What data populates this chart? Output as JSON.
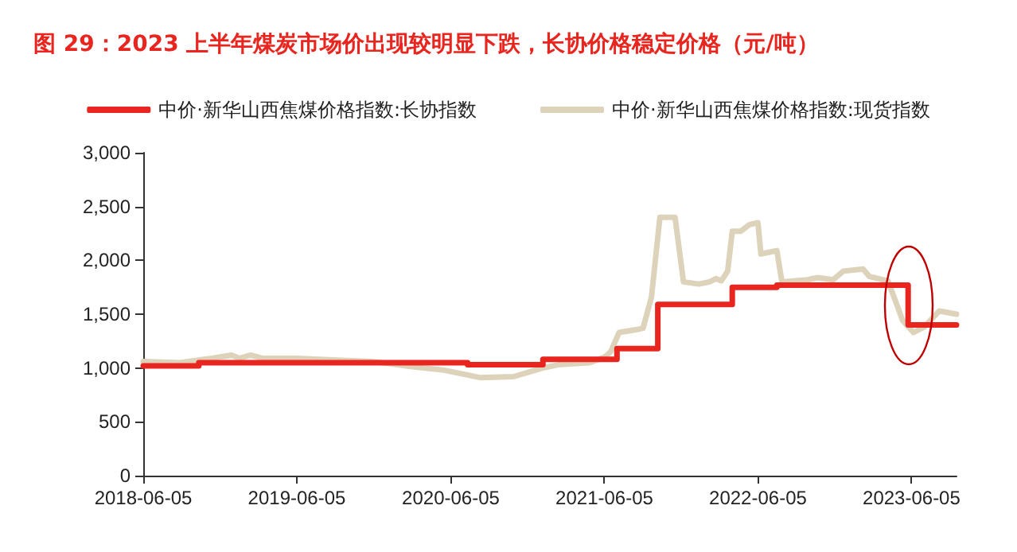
{
  "chart_data": {
    "type": "line",
    "title": "图 29：2023 上半年煤炭市场价出现较明显下跌，长协价格稳定价格（元/吨）",
    "legend": "top",
    "grid": false,
    "marker": "none",
    "line_style": "solid",
    "xlim": [
      "2018-06-05",
      "2023-09-20"
    ],
    "xticks": [
      "2018-06-05",
      "2019-06-05",
      "2020-06-05",
      "2021-06-05",
      "2022-06-05",
      "2023-06-05"
    ],
    "ylim": [
      0,
      3000
    ],
    "yticks": [
      {
        "value": 0,
        "label": "0"
      },
      {
        "value": 500,
        "label": "500"
      },
      {
        "value": 1000,
        "label": "1,000"
      },
      {
        "value": 1500,
        "label": "1,500"
      },
      {
        "value": 2000,
        "label": "2,000"
      },
      {
        "value": 2500,
        "label": "2,500"
      },
      {
        "value": 3000,
        "label": "3,000"
      }
    ],
    "series": [
      {
        "name": "中价·新华山西焦煤价格指数:长协指数",
        "type": "step",
        "color": "#e8261f",
        "x": [
          "2018-06-05",
          "2018-10-15",
          "2020-07-15",
          "2021-01-10",
          "2021-07-05",
          "2021-10-10",
          "2022-04-05",
          "2022-07-20",
          "2023-05-28",
          "2023-09-20"
        ],
        "values": [
          1020,
          1050,
          1030,
          1080,
          1180,
          1590,
          1750,
          1770,
          1400,
          1400
        ]
      },
      {
        "name": "中价·新华山西焦煤价格指数:现货指数",
        "type": "line",
        "color": "#ddd3bb",
        "x": [
          "2018-06-05",
          "2018-09-01",
          "2018-11-15",
          "2019-01-01",
          "2019-01-20",
          "2019-02-15",
          "2019-03-15",
          "2019-06-05",
          "2019-10-01",
          "2019-12-01",
          "2020-02-01",
          "2020-03-10",
          "2020-05-20",
          "2020-08-15",
          "2020-11-01",
          "2021-01-10",
          "2021-02-15",
          "2021-05-01",
          "2021-06-05",
          "2021-06-20",
          "2021-07-10",
          "2021-08-25",
          "2021-09-05",
          "2021-09-25",
          "2021-10-15",
          "2021-11-20",
          "2021-12-10",
          "2022-01-15",
          "2022-02-10",
          "2022-02-25",
          "2022-03-10",
          "2022-03-25",
          "2022-04-05",
          "2022-04-25",
          "2022-05-15",
          "2022-06-05",
          "2022-06-12",
          "2022-07-20",
          "2022-08-01",
          "2022-10-01",
          "2022-10-25",
          "2022-12-01",
          "2022-12-25",
          "2023-02-10",
          "2023-02-25",
          "2023-04-10",
          "2023-04-30",
          "2023-05-15",
          "2023-06-10",
          "2023-07-05",
          "2023-08-10",
          "2023-09-20"
        ],
        "values": [
          1060,
          1050,
          1090,
          1120,
          1090,
          1120,
          1090,
          1090,
          1070,
          1060,
          1030,
          1010,
          980,
          910,
          920,
          1000,
          1030,
          1050,
          1100,
          1150,
          1330,
          1360,
          1370,
          1660,
          2400,
          2400,
          1800,
          1780,
          1800,
          1830,
          1810,
          1900,
          2270,
          2270,
          2330,
          2350,
          2060,
          2090,
          1800,
          1820,
          1840,
          1820,
          1900,
          1920,
          1850,
          1810,
          1600,
          1440,
          1330,
          1380,
          1530,
          1500
        ]
      }
    ]
  }
}
